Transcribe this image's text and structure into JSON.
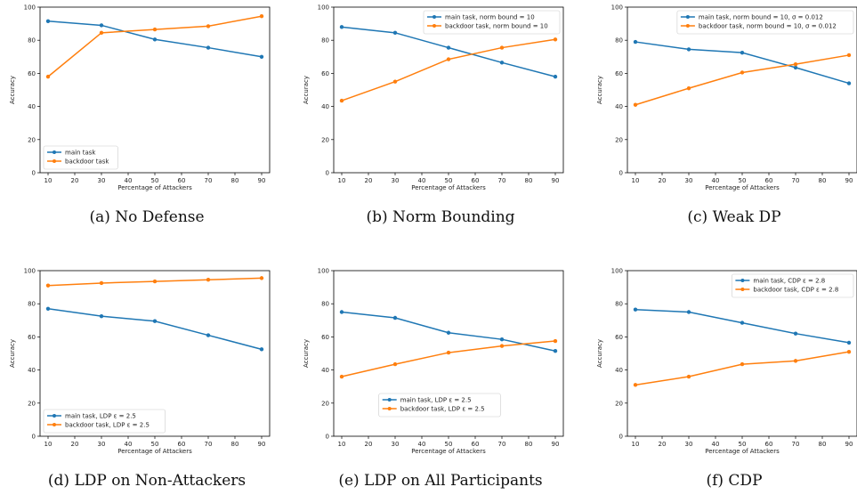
{
  "colors": {
    "main": "#1f77b4",
    "backdoor": "#ff7f0e"
  },
  "chart_data": [
    {
      "type": "line",
      "caption": "(a)  No Defense",
      "x": [
        10,
        30,
        50,
        70,
        90
      ],
      "xticks": [
        "10",
        "20",
        "30",
        "40",
        "50",
        "60",
        "70",
        "80",
        "90"
      ],
      "yticks": [
        "0",
        "20",
        "40",
        "60",
        "80",
        "100"
      ],
      "xlabel": "Percentage of Attackers",
      "ylabel": "Accuracy",
      "xlim": [
        7,
        93
      ],
      "ylim": [
        0,
        100
      ],
      "legend_position": "lower-left",
      "series": [
        {
          "name": "main task",
          "values": [
            91.5,
            89,
            80.5,
            75.5,
            70
          ]
        },
        {
          "name": "backdoor task",
          "values": [
            58,
            84.5,
            86.5,
            88.5,
            94.5
          ]
        }
      ]
    },
    {
      "type": "line",
      "caption": "(b)  Norm Bounding",
      "x": [
        10,
        30,
        50,
        70,
        90
      ],
      "xticks": [
        "10",
        "20",
        "30",
        "40",
        "50",
        "60",
        "70",
        "80",
        "90"
      ],
      "yticks": [
        "0",
        "20",
        "40",
        "60",
        "80",
        "100"
      ],
      "xlabel": "Percentage of Attackers",
      "ylabel": "Accuracy",
      "xlim": [
        7,
        93
      ],
      "ylim": [
        0,
        100
      ],
      "legend_position": "top-right",
      "series": [
        {
          "name": "main task, norm bound = 10",
          "values": [
            88,
            84.5,
            75.5,
            66.5,
            58
          ]
        },
        {
          "name": "backdoor task, norm bound = 10",
          "values": [
            43.5,
            55,
            68.5,
            75.5,
            80.5
          ]
        }
      ]
    },
    {
      "type": "line",
      "caption": "(c)  Weak DP",
      "x": [
        10,
        30,
        50,
        70,
        90
      ],
      "xticks": [
        "10",
        "20",
        "30",
        "40",
        "50",
        "60",
        "70",
        "80",
        "90"
      ],
      "yticks": [
        "0",
        "20",
        "40",
        "60",
        "80",
        "100"
      ],
      "xlabel": "Percentage of Attackers",
      "ylabel": "Accuracy",
      "xlim": [
        7,
        93
      ],
      "ylim": [
        0,
        100
      ],
      "legend_position": "top-right",
      "series": [
        {
          "name": "main task, norm bound = 10, σ = 0.012",
          "values": [
            79,
            74.5,
            72.5,
            63.5,
            54
          ]
        },
        {
          "name": "backdoor task, norm bound = 10, σ = 0.012",
          "values": [
            41,
            51,
            60.5,
            65.5,
            71
          ]
        }
      ]
    },
    {
      "type": "line",
      "caption": "(d)  LDP on Non-Attackers",
      "x": [
        10,
        30,
        50,
        70,
        90
      ],
      "xticks": [
        "10",
        "20",
        "30",
        "40",
        "50",
        "60",
        "70",
        "80",
        "90"
      ],
      "yticks": [
        "0",
        "20",
        "40",
        "60",
        "80",
        "100"
      ],
      "xlabel": "Percentage of Attackers",
      "ylabel": "Accuracy",
      "xlim": [
        7,
        93
      ],
      "ylim": [
        0,
        100
      ],
      "legend_position": "lower-left",
      "series": [
        {
          "name": "main task, LDP ε = 2.5",
          "values": [
            77,
            72.5,
            69.5,
            61,
            52.5
          ]
        },
        {
          "name": "backdoor task, LDP ε = 2.5",
          "values": [
            91,
            92.5,
            93.5,
            94.5,
            95.5
          ]
        }
      ]
    },
    {
      "type": "line",
      "caption": "(e)  LDP on All Participants",
      "x": [
        10,
        30,
        50,
        70,
        90
      ],
      "xticks": [
        "10",
        "20",
        "30",
        "40",
        "50",
        "60",
        "70",
        "80",
        "90"
      ],
      "yticks": [
        "0",
        "20",
        "40",
        "60",
        "80",
        "100"
      ],
      "xlabel": "Percentage of Attackers",
      "ylabel": "Accuracy",
      "xlim": [
        7,
        93
      ],
      "ylim": [
        0,
        100
      ],
      "legend_position": "lower-center",
      "series": [
        {
          "name": "main task, LDP ε = 2.5",
          "values": [
            75,
            71.5,
            62.5,
            58.5,
            51.5
          ]
        },
        {
          "name": "backdoor task, LDP ε = 2.5",
          "values": [
            36,
            43.5,
            50.5,
            54.5,
            57.5
          ]
        }
      ]
    },
    {
      "type": "line",
      "caption": "(f)  CDP",
      "x": [
        10,
        30,
        50,
        70,
        90
      ],
      "xticks": [
        "10",
        "20",
        "30",
        "40",
        "50",
        "60",
        "70",
        "80",
        "90"
      ],
      "yticks": [
        "0",
        "20",
        "40",
        "60",
        "80",
        "100"
      ],
      "xlabel": "Percentage of Attackers",
      "ylabel": "Accuracy",
      "xlim": [
        7,
        93
      ],
      "ylim": [
        0,
        100
      ],
      "legend_position": "top-right",
      "series": [
        {
          "name": "main task, CDP ε = 2.8",
          "values": [
            76.5,
            75,
            68.5,
            62,
            56.5
          ]
        },
        {
          "name": "backdoor task, CDP ε = 2.8",
          "values": [
            31,
            36,
            43.5,
            45.5,
            51
          ]
        }
      ]
    }
  ]
}
